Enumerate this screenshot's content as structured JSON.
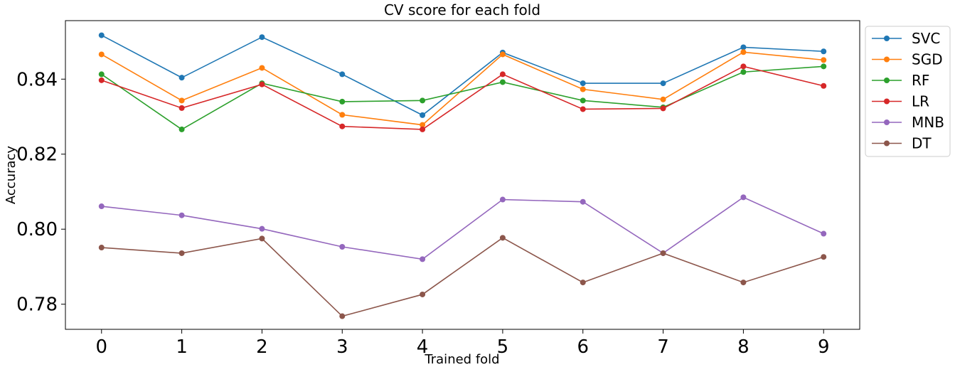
{
  "chart_data": {
    "type": "line",
    "title": "CV score for each fold",
    "xlabel": "Trained fold",
    "ylabel": "Accuracy",
    "x": [
      0,
      1,
      2,
      3,
      4,
      5,
      6,
      7,
      8,
      9
    ],
    "xticks": [
      "0",
      "1",
      "2",
      "3",
      "4",
      "5",
      "6",
      "7",
      "8",
      "9"
    ],
    "yticks": [
      0.78,
      0.8,
      0.82,
      0.84
    ],
    "ytick_labels": [
      "0.78",
      "0.80",
      "0.82",
      "0.84"
    ],
    "xlim": [
      -0.45,
      9.45
    ],
    "ylim": [
      0.7733,
      0.8556
    ],
    "grid": false,
    "legend_position": "outside-right-top",
    "series": [
      {
        "name": "SVC",
        "color": "#1f77b4",
        "values": [
          0.8517,
          0.8404,
          0.8512,
          0.8413,
          0.8304,
          0.8471,
          0.8389,
          0.8389,
          0.8485,
          0.8474
        ]
      },
      {
        "name": "SGD",
        "color": "#ff7f0e",
        "values": [
          0.8466,
          0.8343,
          0.843,
          0.8305,
          0.8278,
          0.8466,
          0.8373,
          0.8346,
          0.8472,
          0.8451
        ]
      },
      {
        "name": "RF",
        "color": "#2ca02c",
        "values": [
          0.8413,
          0.8266,
          0.8389,
          0.834,
          0.8343,
          0.8392,
          0.8343,
          0.8325,
          0.8419,
          0.8434
        ]
      },
      {
        "name": "LR",
        "color": "#d62728",
        "values": [
          0.8397,
          0.8323,
          0.8386,
          0.8274,
          0.8266,
          0.8413,
          0.832,
          0.8322,
          0.8434,
          0.8382
        ]
      },
      {
        "name": "MNB",
        "color": "#9467bd",
        "values": [
          0.8061,
          0.8037,
          0.8001,
          0.7953,
          0.792,
          0.8079,
          0.8073,
          0.7936,
          0.8085,
          0.7988
        ]
      },
      {
        "name": "DT",
        "color": "#8c564b",
        "values": [
          0.7951,
          0.7936,
          0.7975,
          0.7768,
          0.7826,
          0.7977,
          0.7858,
          0.7936,
          0.7858,
          0.7926
        ]
      }
    ]
  }
}
